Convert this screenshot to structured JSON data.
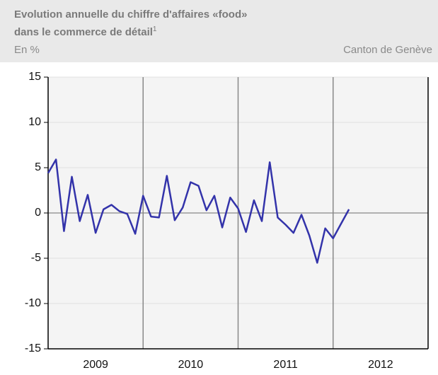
{
  "chart_data": {
    "type": "line",
    "title": "Evolution annuelle du chiffre d'affaires «food»",
    "title_line2": "dans le commerce de détail",
    "footnote_mark": "1",
    "unit": "En %",
    "region": "Canton de Genève",
    "x": [
      2009.0,
      2009.083,
      2009.167,
      2009.25,
      2009.333,
      2009.417,
      2009.5,
      2009.583,
      2009.667,
      2009.75,
      2009.833,
      2009.917,
      2010.0,
      2010.083,
      2010.167,
      2010.25,
      2010.333,
      2010.417,
      2010.5,
      2010.583,
      2010.667,
      2010.75,
      2010.833,
      2010.917,
      2011.0,
      2011.083,
      2011.167,
      2011.25,
      2011.333,
      2011.417,
      2011.5,
      2011.583,
      2011.667,
      2011.75,
      2011.833,
      2011.917,
      2012.0,
      2012.083,
      2012.167
    ],
    "series": [
      {
        "name": "Chiffre d'affaires food",
        "color": "#3333aa",
        "values": [
          4.4,
          5.9,
          -2.0,
          4.0,
          -0.9,
          2.0,
          -2.2,
          0.4,
          0.9,
          0.2,
          -0.1,
          -2.3,
          1.9,
          -0.4,
          -0.5,
          4.1,
          -0.8,
          0.6,
          3.4,
          3.0,
          0.3,
          1.9,
          -1.6,
          1.7,
          0.5,
          -2.1,
          1.4,
          -0.9,
          5.6,
          -0.5,
          -1.3,
          -2.2,
          -0.2,
          -2.5,
          -5.5,
          -1.7,
          -2.8,
          -1.2,
          0.4
        ]
      }
    ],
    "xlim": [
      2009,
      2013
    ],
    "xticks": [
      {
        "value": 2009.5,
        "label": "2009"
      },
      {
        "value": 2010.5,
        "label": "2010"
      },
      {
        "value": 2011.5,
        "label": "2011"
      },
      {
        "value": 2012.5,
        "label": "2012"
      }
    ],
    "xgrid": [
      2010,
      2011,
      2012
    ],
    "ylim": [
      -15,
      15
    ],
    "yticks": [
      -15,
      -10,
      -5,
      0,
      5,
      10,
      15
    ],
    "grid": true
  }
}
